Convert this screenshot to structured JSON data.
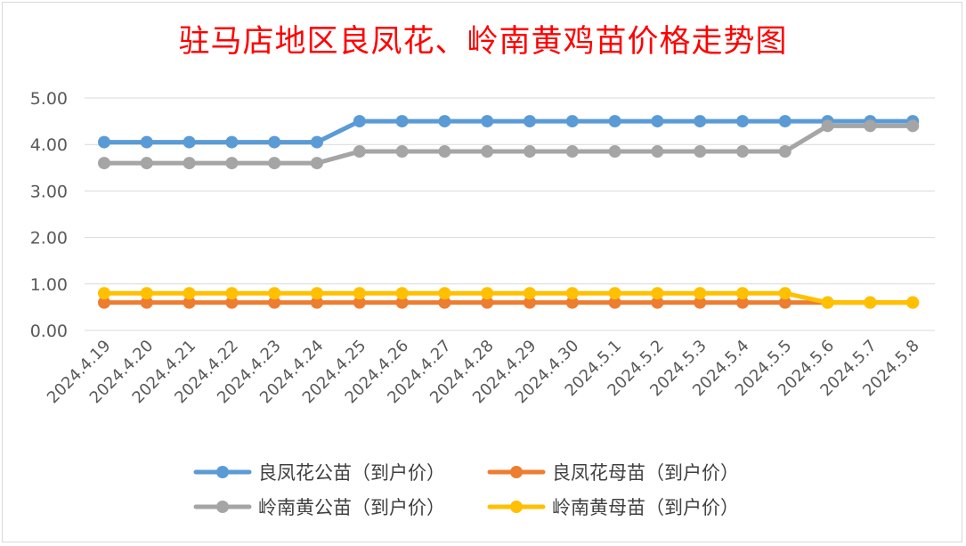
{
  "chart_data": {
    "type": "line",
    "title": "驻马店地区良凤花、岭南黄鸡苗价格走势图",
    "xlabel": "",
    "ylabel": "",
    "ylim": [
      0,
      5
    ],
    "yticks": [
      "0.00",
      "1.00",
      "2.00",
      "3.00",
      "4.00",
      "5.00"
    ],
    "grid": true,
    "legend_position": "bottom",
    "categories": [
      "2024.4.19",
      "2024.4.20",
      "2024.4.21",
      "2024.4.22",
      "2024.4.23",
      "2024.4.24",
      "2024.4.25",
      "2024.4.26",
      "2024.4.27",
      "2024.4.28",
      "2024.4.29",
      "2024.4.30",
      "2024.5.1",
      "2024.5.2",
      "2024.5.3",
      "2024.5.4",
      "2024.5.5",
      "2024.5.6",
      "2024.5.7",
      "2024.5.8"
    ],
    "series": [
      {
        "name": "良凤花公苗（到户价）",
        "color": "#5b9bd5",
        "values": [
          4.05,
          4.05,
          4.05,
          4.05,
          4.05,
          4.05,
          4.5,
          4.5,
          4.5,
          4.5,
          4.5,
          4.5,
          4.5,
          4.5,
          4.5,
          4.5,
          4.5,
          4.5,
          4.5,
          4.5
        ]
      },
      {
        "name": "良凤花母苗（到户价）",
        "color": "#ed7d31",
        "values": [
          0.6,
          0.6,
          0.6,
          0.6,
          0.6,
          0.6,
          0.6,
          0.6,
          0.6,
          0.6,
          0.6,
          0.6,
          0.6,
          0.6,
          0.6,
          0.6,
          0.6,
          0.6,
          0.6,
          0.6
        ]
      },
      {
        "name": "岭南黄公苗（到户价）",
        "color": "#a5a5a5",
        "values": [
          3.6,
          3.6,
          3.6,
          3.6,
          3.6,
          3.6,
          3.85,
          3.85,
          3.85,
          3.85,
          3.85,
          3.85,
          3.85,
          3.85,
          3.85,
          3.85,
          3.85,
          4.4,
          4.4,
          4.4
        ]
      },
      {
        "name": "岭南黄母苗（到户价）",
        "color": "#ffc000",
        "values": [
          0.8,
          0.8,
          0.8,
          0.8,
          0.8,
          0.8,
          0.8,
          0.8,
          0.8,
          0.8,
          0.8,
          0.8,
          0.8,
          0.8,
          0.8,
          0.8,
          0.8,
          0.6,
          0.6,
          0.6
        ]
      }
    ]
  }
}
